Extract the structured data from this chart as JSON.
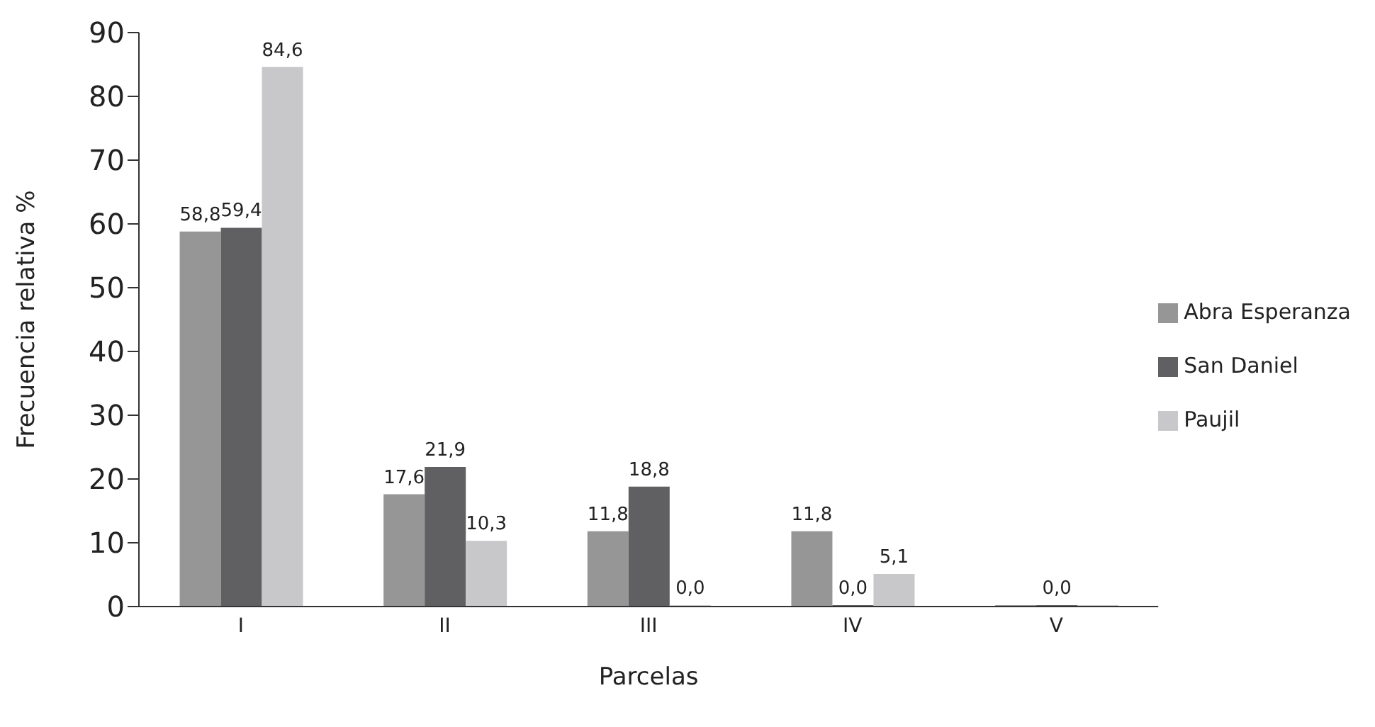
{
  "chart_data": {
    "type": "bar",
    "xlabel": "Parcelas",
    "ylabel": "Frecuencia relativa %",
    "categories": [
      "I",
      "II",
      "III",
      "IV",
      "V"
    ],
    "series": [
      {
        "name": "Abra Esperanza",
        "color": "#969696",
        "values": [
          58.8,
          17.6,
          11.8,
          11.8,
          0
        ],
        "value_labels": [
          "58,8",
          "17,6",
          "11,8",
          "11,8",
          null
        ]
      },
      {
        "name": "San Daniel",
        "color": "#606062",
        "values": [
          59.4,
          21.9,
          18.8,
          0,
          0
        ],
        "value_labels": [
          "59,4",
          "21,9",
          "18,8",
          "0,0",
          "0,0"
        ]
      },
      {
        "name": "Paujil",
        "color": "#c8c8ca",
        "values": [
          84.6,
          10.3,
          0,
          5.1,
          0
        ],
        "value_labels": [
          "84,6",
          "10,3",
          "0,0",
          "5,1",
          null
        ]
      }
    ],
    "ylim": [
      0,
      90
    ],
    "yticks": [
      0,
      10,
      20,
      30,
      40,
      50,
      60,
      70,
      80,
      90
    ],
    "grid": false,
    "legend": "right"
  }
}
